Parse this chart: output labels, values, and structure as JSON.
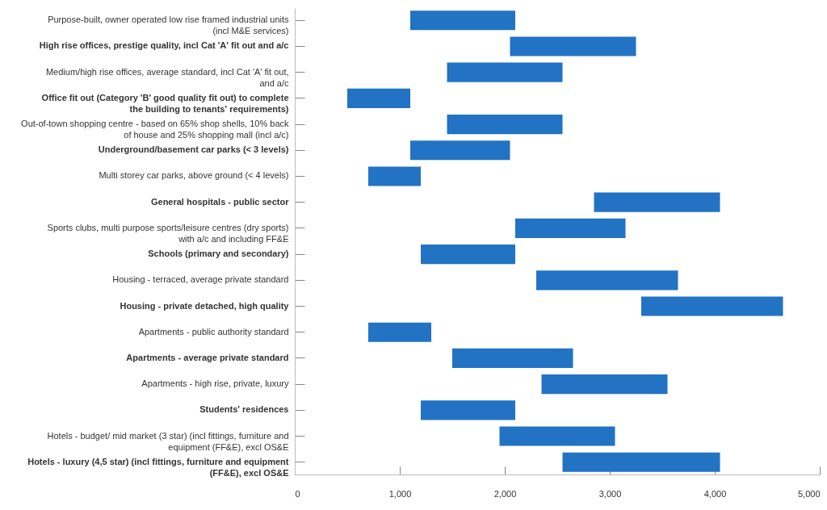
{
  "chart_data": {
    "type": "bar",
    "orientation": "horizontal",
    "categories": [
      "Purpose-built, owner operated low rise framed industrial units (incl M&E services)",
      "High rise offices, prestige quality, incl Cat 'A' fit out and a/c",
      "Medium/high rise offices, average standard, incl Cat 'A' fit out, and a/c",
      "Office fit out (Category 'B'  good quality fit out) to complete the building to tenants' requirements)",
      "Out-of-town shopping centre - based on 65% shop shells, 10% back of house and 25% shopping mall (incl a/c)",
      "Underground/basement car parks (< 3 levels)",
      "Multi storey car parks, above ground (< 4 levels)",
      "General hospitals - public sector",
      "Sports clubs, multi purpose sports/leisure centres (dry sports) with a/c and including FF&E",
      "Schools  (primary and secondary)",
      "Housing - terraced, average private standard",
      "Housing - private detached, high quality",
      "Apartments - public authority standard",
      "Apartments - average private standard",
      "Apartments - high rise, private, luxury",
      "Students' residences",
      "Hotels - budget/ mid market (3 star) (incl fittings, furniture and equipment (FF&E), excl OS&E",
      "Hotels - luxury (4,5 star) (incl fittings, furniture and equipment (FF&E), excl OS&E"
    ],
    "base": [
      1100,
      2050,
      1450,
      500,
      1450,
      1100,
      700,
      2850,
      2100,
      1200,
      2300,
      3300,
      700,
      1500,
      2350,
      1200,
      1950,
      2550
    ],
    "values": [
      1000,
      1200,
      1100,
      600,
      1100,
      950,
      500,
      1200,
      1050,
      900,
      1350,
      1350,
      600,
      1150,
      1200,
      900,
      1100,
      1500
    ],
    "color": "#2273c3",
    "xlim": [
      0,
      5000
    ],
    "xticks": [
      0,
      {
        "value": 1000,
        "label": "1,000"
      },
      {
        "value": 2000,
        "label": "2,000"
      },
      {
        "value": 3000,
        "label": "3,000"
      },
      {
        "value": 4000,
        "label": "4,000"
      },
      {
        "value": 5000,
        "label": "5,000"
      }
    ],
    "grid": false
  }
}
